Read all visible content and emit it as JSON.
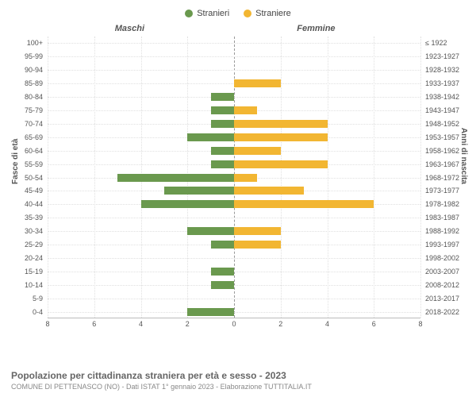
{
  "legend": {
    "series1": {
      "label": "Stranieri",
      "color": "#6a994e"
    },
    "series2": {
      "label": "Straniere",
      "color": "#f2b632"
    }
  },
  "section_left": "Maschi",
  "section_right": "Femmine",
  "y_axis_left_title": "Fasce di età",
  "y_axis_right_title": "Anni di nascita",
  "x_axis": {
    "max": 8,
    "ticks": [
      0,
      2,
      4,
      6,
      8
    ],
    "labels": [
      "0",
      "2",
      "4",
      "6",
      "8"
    ]
  },
  "categories": [
    {
      "age": "100+",
      "birth": "≤ 1922",
      "m": 0,
      "f": 0
    },
    {
      "age": "95-99",
      "birth": "1923-1927",
      "m": 0,
      "f": 0
    },
    {
      "age": "90-94",
      "birth": "1928-1932",
      "m": 0,
      "f": 0
    },
    {
      "age": "85-89",
      "birth": "1933-1937",
      "m": 0,
      "f": 2
    },
    {
      "age": "80-84",
      "birth": "1938-1942",
      "m": 1,
      "f": 0
    },
    {
      "age": "75-79",
      "birth": "1943-1947",
      "m": 1,
      "f": 1
    },
    {
      "age": "70-74",
      "birth": "1948-1952",
      "m": 1,
      "f": 4
    },
    {
      "age": "65-69",
      "birth": "1953-1957",
      "m": 2,
      "f": 4
    },
    {
      "age": "60-64",
      "birth": "1958-1962",
      "m": 1,
      "f": 2
    },
    {
      "age": "55-59",
      "birth": "1963-1967",
      "m": 1,
      "f": 4
    },
    {
      "age": "50-54",
      "birth": "1968-1972",
      "m": 5,
      "f": 1
    },
    {
      "age": "45-49",
      "birth": "1973-1977",
      "m": 3,
      "f": 3
    },
    {
      "age": "40-44",
      "birth": "1978-1982",
      "m": 4,
      "f": 6
    },
    {
      "age": "35-39",
      "birth": "1983-1987",
      "m": 0,
      "f": 0
    },
    {
      "age": "30-34",
      "birth": "1988-1992",
      "m": 2,
      "f": 2
    },
    {
      "age": "25-29",
      "birth": "1993-1997",
      "m": 1,
      "f": 2
    },
    {
      "age": "20-24",
      "birth": "1998-2002",
      "m": 0,
      "f": 0
    },
    {
      "age": "15-19",
      "birth": "2003-2007",
      "m": 1,
      "f": 0
    },
    {
      "age": "10-14",
      "birth": "2008-2012",
      "m": 1,
      "f": 0
    },
    {
      "age": "5-9",
      "birth": "2013-2017",
      "m": 0,
      "f": 0
    },
    {
      "age": "0-4",
      "birth": "2018-2022",
      "m": 2,
      "f": 0
    }
  ],
  "footer": {
    "title": "Popolazione per cittadinanza straniera per età e sesso - 2023",
    "subtitle": "COMUNE DI PETTENASCO (NO) - Dati ISTAT 1° gennaio 2023 - Elaborazione TUTTITALIA.IT"
  },
  "style": {
    "background_color": "#ffffff",
    "grid_color": "#e0e0e0",
    "axis_color": "#bbbbbb",
    "text_color": "#555555",
    "title_fontsize": 12,
    "label_fontsize": 10,
    "tick_fontsize": 9,
    "legend_fontsize": 11
  }
}
